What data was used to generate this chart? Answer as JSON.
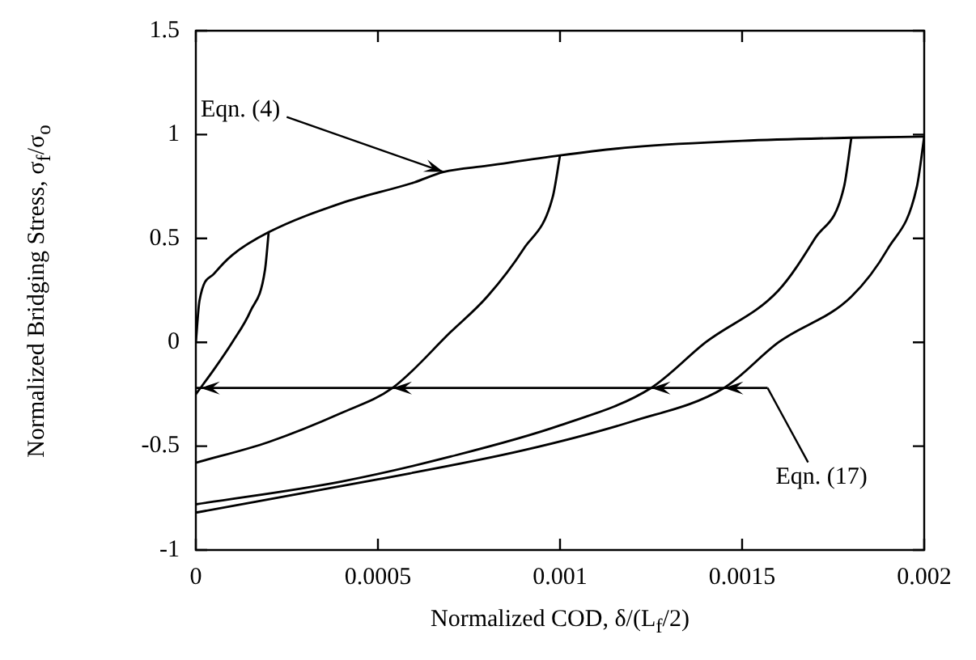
{
  "chart_data": {
    "type": "line",
    "xlabel": "Normalized COD, δ/(L$_{f}$/2)",
    "ylabel": "Normalized Bridging Stress, σ$_{f}$/σ$_{o}$",
    "xlim": [
      0,
      0.002
    ],
    "xticks": [
      0,
      0.0005,
      0.001,
      0.0015,
      0.002
    ],
    "ylim": [
      -1,
      1.5
    ],
    "yticks": [
      -1,
      -0.5,
      0,
      0.5,
      1,
      1.5
    ],
    "annotations": [
      {
        "text": "Eqn. (4)",
        "x": 0.00068,
        "y": 0.82
      },
      {
        "text": "Eqn. (17)",
        "x": 0.00157,
        "y": -0.22
      }
    ],
    "series": [
      {
        "color": "#000000",
        "x": [
          0,
          1e-05,
          5e-05,
          0.0001,
          0.0002,
          0.0004,
          0.0006,
          0.00068,
          0.0008,
          0.001,
          0.0012,
          0.0015,
          0.0018,
          0.002
        ],
        "values": [
          0,
          0.2,
          0.33,
          0.42,
          0.53,
          0.67,
          0.77,
          0.82,
          0.85,
          0.9,
          0.94,
          0.97,
          0.985,
          0.99
        ]
      },
      {
        "color": "#000000",
        "x": [
          0.0002,
          0.00019,
          0.00015,
          0.0001,
          5e-05,
          0
        ],
        "values": [
          0.53,
          0.35,
          0.15,
          0,
          -0.13,
          -0.25
        ]
      },
      {
        "color": "#000000",
        "x": [
          0.001,
          0.00098,
          0.0009,
          0.0008,
          0.0007,
          0.00054,
          0.0004,
          0.0002,
          0
        ],
        "values": [
          0.9,
          0.7,
          0.45,
          0.22,
          0.05,
          -0.22,
          -0.34,
          -0.48,
          -0.58
        ]
      },
      {
        "color": "#000000",
        "x": [
          0.0018,
          0.00178,
          0.0017,
          0.0016,
          0.0014,
          0.00125,
          0.001,
          0.0007,
          0.0004,
          0
        ],
        "values": [
          0.985,
          0.75,
          0.5,
          0.25,
          0,
          -0.22,
          -0.4,
          -0.55,
          -0.67,
          -0.78
        ]
      },
      {
        "color": "#000000",
        "x": [
          0.002,
          0.00198,
          0.0019,
          0.0018,
          0.0016,
          0.00145,
          0.0012,
          0.0009,
          0.0005,
          0
        ],
        "values": [
          0.99,
          0.75,
          0.45,
          0.22,
          0,
          -0.22,
          -0.38,
          -0.52,
          -0.66,
          -0.82
        ]
      },
      {
        "color": "#000000",
        "x": [
          0.00157,
          0
        ],
        "values": [
          -0.22,
          -0.22
        ]
      }
    ]
  }
}
